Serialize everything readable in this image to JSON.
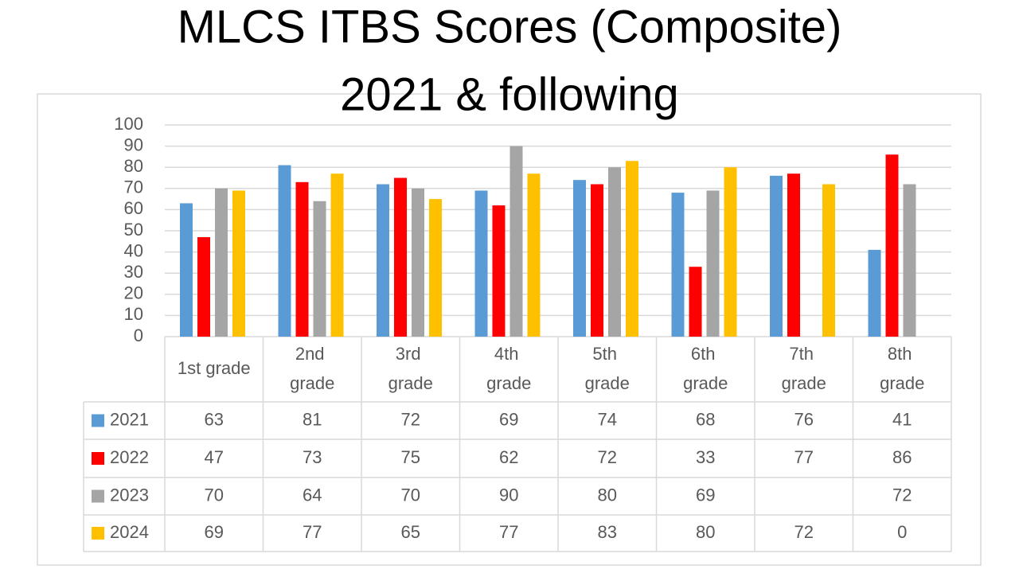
{
  "chart_data": {
    "type": "bar",
    "title": "MLCS ITBS Scores (Composite)",
    "subtitle": "2021 & following",
    "categories": [
      "1st grade",
      "2nd grade",
      "3rd grade",
      "4th grade",
      "5th grade",
      "6th grade",
      "7th grade",
      "8th grade"
    ],
    "series": [
      {
        "name": "2021",
        "color": "#5b9bd5",
        "values": [
          63,
          81,
          72,
          69,
          74,
          68,
          76,
          41
        ]
      },
      {
        "name": "2022",
        "color": "#ff0000",
        "values": [
          47,
          73,
          75,
          62,
          72,
          33,
          77,
          86
        ]
      },
      {
        "name": "2023",
        "color": "#a5a5a5",
        "values": [
          70,
          64,
          70,
          90,
          80,
          69,
          null,
          72
        ]
      },
      {
        "name": "2024",
        "color": "#ffc000",
        "values": [
          69,
          77,
          65,
          77,
          83,
          80,
          72,
          0
        ]
      }
    ],
    "ylim": [
      0,
      100
    ],
    "yticks": [
      0,
      10,
      20,
      30,
      40,
      50,
      60,
      70,
      80,
      90,
      100
    ],
    "grid": true,
    "data_table": true
  }
}
